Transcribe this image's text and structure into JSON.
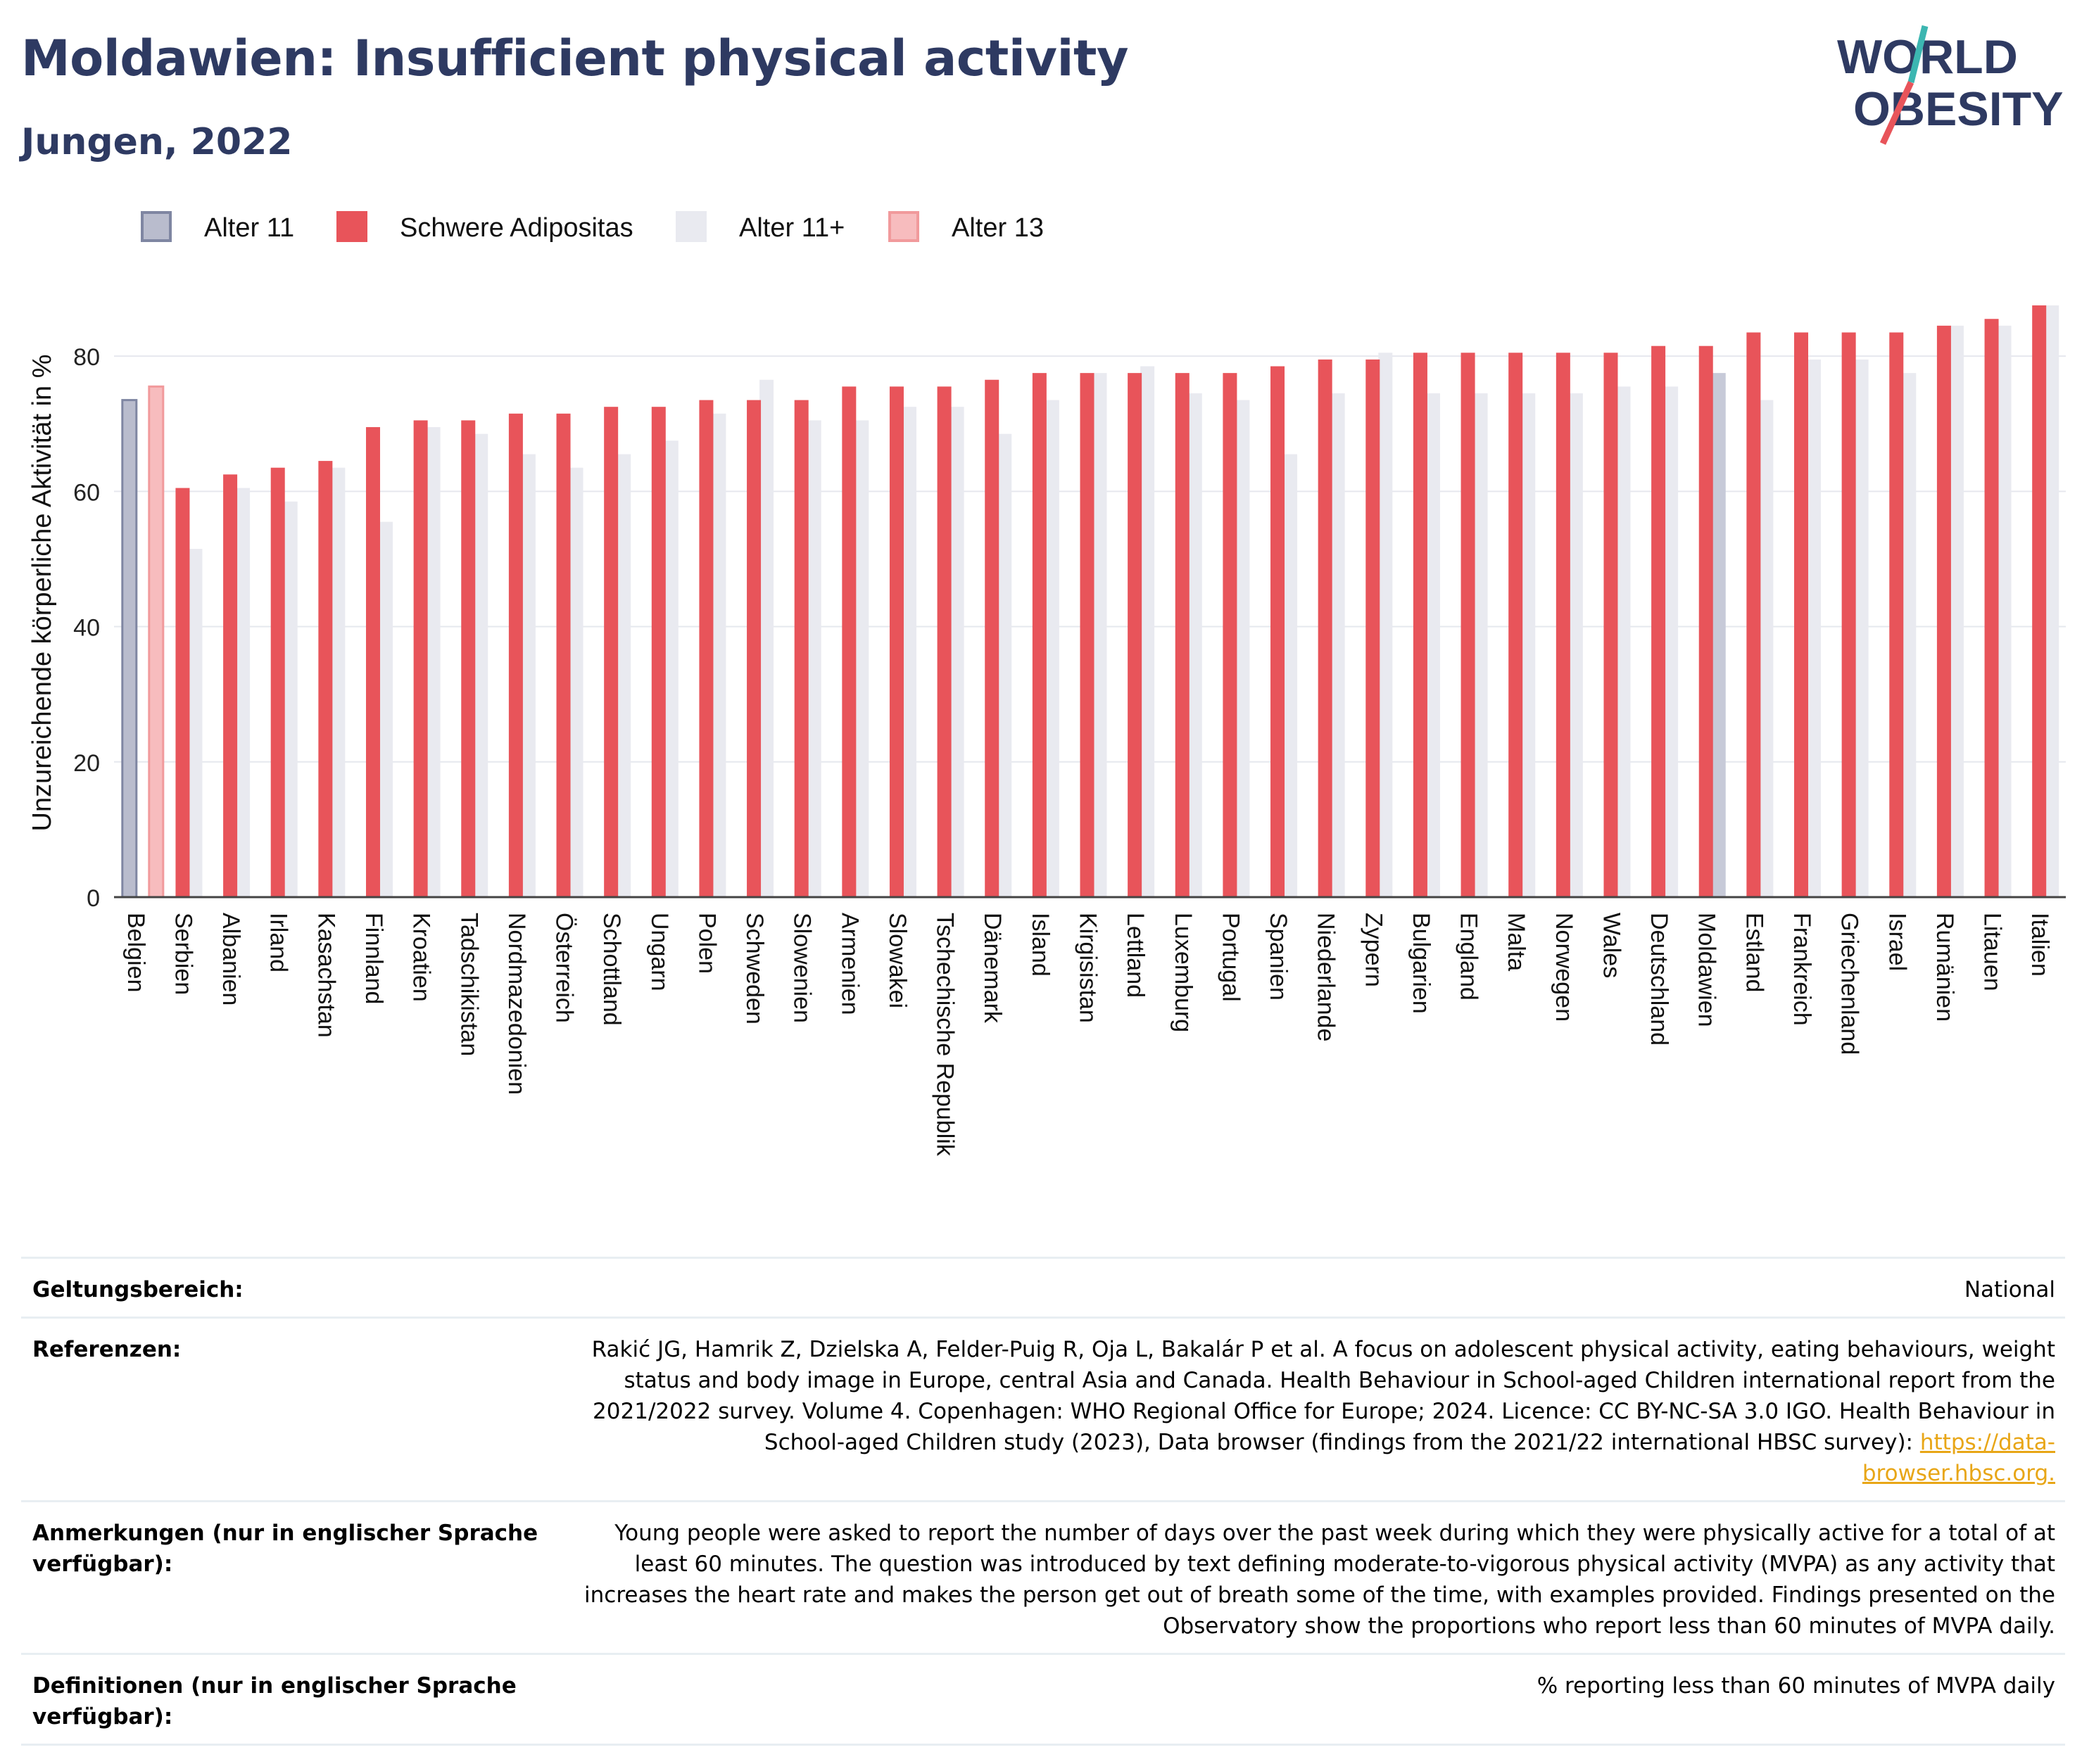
{
  "header": {
    "title": "Moldawien: Insufficient physical activity",
    "subtitle": "Jungen, 2022",
    "logo_line1": "WORLD",
    "logo_line2": "OBESITY"
  },
  "colors": {
    "title": "#2e3a62",
    "alter11": "#b9bccd",
    "alter11_border": "#7f86a2",
    "schwere": "#e8545a",
    "alter11plus": "#e9eaf0",
    "alter13": "#f7bcbe",
    "alter13_border": "#f19a9c",
    "moldawien_highlight": "#c7cad8",
    "link": "#e8a617",
    "logo_slash_top": "#3cb6b1",
    "logo_slash_bottom": "#e8545a"
  },
  "chart_data": {
    "type": "bar",
    "ylabel": "Unzureichende körperliche Aktivität in %",
    "ylim": [
      0,
      90
    ],
    "yticks": [
      0,
      20,
      40,
      60,
      80
    ],
    "grid": true,
    "legend_position": "top-left",
    "legend": [
      "Alter 11",
      "Schwere Adipositas",
      "Alter 11+",
      "Alter 13"
    ],
    "categories": [
      "Belgien",
      "Serbien",
      "Albanien",
      "Irland",
      "Kasachstan",
      "Finnland",
      "Kroatien",
      "Tadschikistan",
      "Nordmazedonien",
      "Österreich",
      "Schottland",
      "Ungarn",
      "Polen",
      "Schweden",
      "Slowenien",
      "Armenien",
      "Slowakei",
      "Tschechische Republik",
      "Dänemark",
      "Island",
      "Kirgisistan",
      "Lettland",
      "Luxemburg",
      "Portugal",
      "Spanien",
      "Niederlande",
      "Zypern",
      "Bulgarien",
      "England",
      "Malta",
      "Norwegen",
      "Wales",
      "Deutschland",
      "Moldawien",
      "Estland",
      "Frankreich",
      "Griechenland",
      "Israel",
      "Rumänien",
      "Litauen",
      "Italien"
    ],
    "series": [
      {
        "name": "Schwere Adipositas",
        "values": [
          null,
          60.5,
          62.5,
          63.5,
          64.5,
          69.5,
          70.5,
          70.5,
          71.5,
          71.5,
          72.5,
          72.5,
          73.5,
          73.5,
          73.5,
          75.5,
          75.5,
          75.5,
          76.5,
          77.5,
          77.5,
          77.5,
          77.5,
          77.5,
          78.5,
          79.5,
          79.5,
          80.5,
          80.5,
          80.5,
          80.5,
          80.5,
          81.5,
          81.5,
          83.5,
          83.5,
          83.5,
          83.5,
          84.5,
          85.5,
          87.5
        ]
      },
      {
        "name": "Alter 11+",
        "values": [
          null,
          51.5,
          60.5,
          58.5,
          63.5,
          55.5,
          69.5,
          68.5,
          65.5,
          63.5,
          65.5,
          67.5,
          71.5,
          76.5,
          70.5,
          70.5,
          72.5,
          72.5,
          68.5,
          73.5,
          77.5,
          78.5,
          74.5,
          73.5,
          65.5,
          74.5,
          80.5,
          74.5,
          74.5,
          74.5,
          74.5,
          75.5,
          75.5,
          77.5,
          73.5,
          79.5,
          79.5,
          77.5,
          84.5,
          84.5,
          87.5
        ]
      },
      {
        "name": "Alter 11",
        "values": [
          73.5,
          null,
          null,
          null,
          null,
          null,
          null,
          null,
          null,
          null,
          null,
          null,
          null,
          null,
          null,
          null,
          null,
          null,
          null,
          null,
          null,
          null,
          null,
          null,
          null,
          null,
          null,
          null,
          null,
          null,
          null,
          null,
          null,
          null,
          null,
          null,
          null,
          null,
          null,
          null,
          null
        ]
      },
      {
        "name": "Alter 13",
        "values": [
          75.5,
          null,
          null,
          null,
          null,
          null,
          null,
          null,
          null,
          null,
          null,
          null,
          null,
          null,
          null,
          null,
          null,
          null,
          null,
          null,
          null,
          null,
          null,
          null,
          null,
          null,
          null,
          null,
          null,
          null,
          null,
          null,
          null,
          null,
          null,
          null,
          null,
          null,
          null,
          null,
          null
        ]
      }
    ]
  },
  "meta": {
    "scope_label": "Geltungsbereich:",
    "scope_value": "National",
    "refs_label": "Referenzen:",
    "refs_text": "Rakić JG, Hamrik Z, Dzielska A, Felder-Puig R, Oja L, Bakalár P et al. A focus on adolescent physical activity, eating behaviours, weight status and body image in Europe, central Asia and Canada. Health Behaviour in School-aged Children international report from the 2021/2022 survey. Volume 4. Copenhagen: WHO Regional Office for Europe; 2024. Licence: CC BY-NC-SA 3.0 IGO. Health Behaviour in School-aged Children study (2023), Data browser (findings from the 2021/22 international HBSC survey): ",
    "refs_link": "https://data-browser.hbsc.org.",
    "notes_label": "Anmerkungen (nur in englischer Sprache verfügbar):",
    "notes_text": "Young people were asked to report the number of days over the past week during which they were physically active for a total of at least 60 minutes. The question was introduced by text defining moderate-to-vigorous physical activity (MVPA) as any activity that increases the heart rate and makes the person get out of breath some of the time, with examples provided. Findings presented on the Observatory show the proportions who report less than 60 minutes of MVPA daily.",
    "defs_label": "Definitionen (nur in englischer Sprache verfügbar):",
    "defs_text": "% reporting less than 60 minutes of MVPA daily"
  }
}
